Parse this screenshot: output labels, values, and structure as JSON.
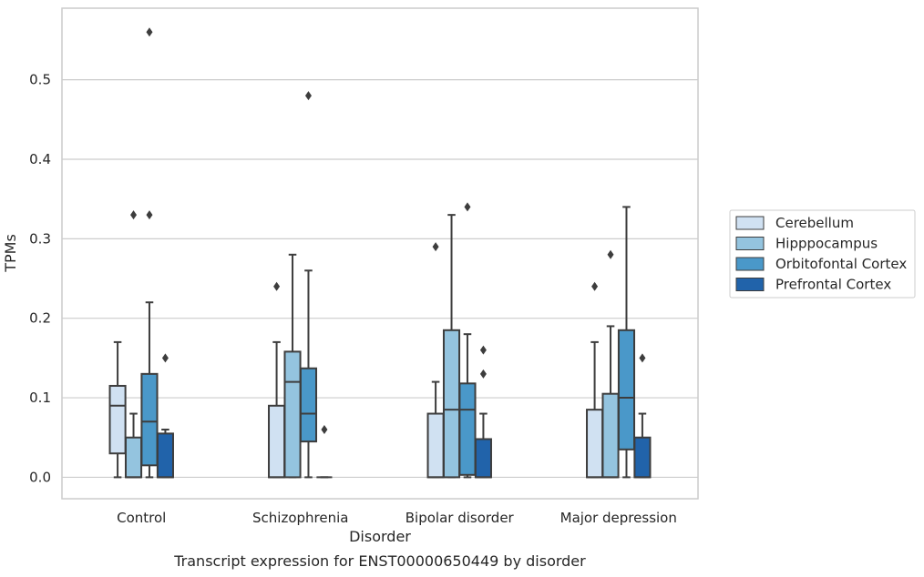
{
  "caption": "Transcript expression for ENST00000650449 by disorder",
  "chart_data": {
    "type": "box",
    "title": "",
    "xlabel": "Disorder",
    "ylabel": "TPMs",
    "ylim": [
      -0.027,
      0.59
    ],
    "yticks": [
      0.0,
      0.1,
      0.2,
      0.3,
      0.4,
      0.5
    ],
    "ytick_labels": [
      "0.0",
      "0.1",
      "0.2",
      "0.3",
      "0.4",
      "0.5"
    ],
    "grid": "horizontal",
    "legend_position": "right",
    "categories": [
      "Control",
      "Schizophrenia",
      "Bipolar disorder",
      "Major depression"
    ],
    "series": [
      {
        "name": "Cerebellum",
        "color": "#d0e1f2",
        "boxes": [
          {
            "whisker_low": 0.0,
            "q1": 0.03,
            "median": 0.09,
            "q3": 0.115,
            "whisker_high": 0.17,
            "outliers": []
          },
          {
            "whisker_low": 0.0,
            "q1": 0.0,
            "median": 0.0,
            "q3": 0.09,
            "whisker_high": 0.17,
            "outliers": [
              0.24
            ]
          },
          {
            "whisker_low": 0.0,
            "q1": 0.0,
            "median": 0.0,
            "q3": 0.08,
            "whisker_high": 0.12,
            "outliers": [
              0.29
            ]
          },
          {
            "whisker_low": 0.0,
            "q1": 0.0,
            "median": 0.0,
            "q3": 0.085,
            "whisker_high": 0.17,
            "outliers": [
              0.24
            ]
          }
        ]
      },
      {
        "name": "Hipppocampus",
        "color": "#94c4df",
        "boxes": [
          {
            "whisker_low": 0.0,
            "q1": 0.0,
            "median": 0.0,
            "q3": 0.05,
            "whisker_high": 0.08,
            "outliers": [
              0.33
            ]
          },
          {
            "whisker_low": 0.0,
            "q1": 0.0,
            "median": 0.12,
            "q3": 0.158,
            "whisker_high": 0.28,
            "outliers": []
          },
          {
            "whisker_low": 0.0,
            "q1": 0.0,
            "median": 0.085,
            "q3": 0.185,
            "whisker_high": 0.33,
            "outliers": []
          },
          {
            "whisker_low": 0.0,
            "q1": 0.0,
            "median": 0.0,
            "q3": 0.105,
            "whisker_high": 0.19,
            "outliers": [
              0.28
            ]
          }
        ]
      },
      {
        "name": "Orbitofontal Cortex",
        "color": "#4a98c9",
        "boxes": [
          {
            "whisker_low": 0.0,
            "q1": 0.015,
            "median": 0.07,
            "q3": 0.13,
            "whisker_high": 0.22,
            "outliers": [
              0.33,
              0.56
            ]
          },
          {
            "whisker_low": 0.0,
            "q1": 0.045,
            "median": 0.08,
            "q3": 0.137,
            "whisker_high": 0.26,
            "outliers": [
              0.48
            ]
          },
          {
            "whisker_low": 0.0,
            "q1": 0.003,
            "median": 0.085,
            "q3": 0.118,
            "whisker_high": 0.18,
            "outliers": [
              0.34
            ]
          },
          {
            "whisker_low": 0.0,
            "q1": 0.035,
            "median": 0.1,
            "q3": 0.185,
            "whisker_high": 0.34,
            "outliers": []
          }
        ]
      },
      {
        "name": "Prefrontal Cortex",
        "color": "#2163aa",
        "boxes": [
          {
            "whisker_low": 0.0,
            "q1": 0.0,
            "median": 0.0,
            "q3": 0.055,
            "whisker_high": 0.06,
            "outliers": [
              0.15
            ]
          },
          {
            "whisker_low": 0.0,
            "q1": 0.0,
            "median": 0.0,
            "q3": 0.0,
            "whisker_high": 0.0,
            "outliers": [
              0.06
            ]
          },
          {
            "whisker_low": 0.0,
            "q1": 0.0,
            "median": 0.0,
            "q3": 0.048,
            "whisker_high": 0.08,
            "outliers": [
              0.13,
              0.16
            ]
          },
          {
            "whisker_low": 0.0,
            "q1": 0.0,
            "median": 0.0,
            "q3": 0.05,
            "whisker_high": 0.08,
            "outliers": [
              0.15
            ]
          }
        ]
      }
    ]
  }
}
